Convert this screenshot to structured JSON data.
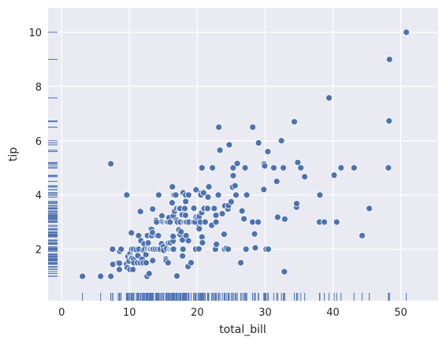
{
  "chart_data": {
    "type": "scatter",
    "title": "",
    "xlabel": "total_bill",
    "ylabel": "tip",
    "xlim": [
      -2,
      55.5
    ],
    "ylim": [
      0.1,
      10.9
    ],
    "xticks": [
      0,
      10,
      20,
      30,
      40,
      50
    ],
    "yticks": [
      2,
      4,
      6,
      8,
      10
    ],
    "grid": true,
    "rug": true,
    "colors": {
      "background": "#eaeaf2",
      "grid": "#ffffff",
      "marker": "#4c72b0",
      "marker_edge": "#ffffff"
    },
    "points": [
      [
        3.07,
        1.0
      ],
      [
        5.75,
        1.0
      ],
      [
        7.25,
        1.0
      ],
      [
        7.25,
        5.15
      ],
      [
        7.51,
        2.0
      ],
      [
        7.56,
        1.44
      ],
      [
        8.35,
        1.5
      ],
      [
        8.51,
        1.25
      ],
      [
        8.52,
        1.48
      ],
      [
        8.58,
        1.92
      ],
      [
        8.77,
        2.0
      ],
      [
        9.55,
        1.45
      ],
      [
        9.6,
        4.0
      ],
      [
        9.68,
        1.32
      ],
      [
        9.78,
        1.73
      ],
      [
        9.94,
        1.56
      ],
      [
        10.07,
        1.25
      ],
      [
        10.07,
        1.83
      ],
      [
        10.27,
        1.71
      ],
      [
        10.29,
        2.6
      ],
      [
        10.33,
        1.67
      ],
      [
        10.33,
        2.0
      ],
      [
        10.34,
        1.66
      ],
      [
        10.34,
        2.0
      ],
      [
        10.51,
        1.25
      ],
      [
        10.59,
        1.61
      ],
      [
        10.63,
        2.0
      ],
      [
        10.65,
        1.5
      ],
      [
        11.02,
        1.98
      ],
      [
        11.17,
        1.5
      ],
      [
        11.24,
        1.76
      ],
      [
        11.35,
        2.5
      ],
      [
        11.38,
        2.0
      ],
      [
        11.59,
        1.5
      ],
      [
        11.61,
        3.39
      ],
      [
        11.69,
        2.31
      ],
      [
        11.87,
        1.63
      ],
      [
        12.02,
        1.97
      ],
      [
        12.03,
        1.5
      ],
      [
        12.16,
        2.2
      ],
      [
        12.26,
        2.0
      ],
      [
        12.43,
        1.8
      ],
      [
        12.46,
        1.5
      ],
      [
        12.48,
        2.52
      ],
      [
        12.54,
        2.5
      ],
      [
        12.6,
        1.0
      ],
      [
        12.66,
        2.5
      ],
      [
        12.69,
        2.0
      ],
      [
        12.74,
        2.01
      ],
      [
        12.76,
        2.23
      ],
      [
        12.9,
        1.1
      ],
      [
        13.0,
        2.0
      ],
      [
        13.03,
        2.0
      ],
      [
        13.13,
        2.0
      ],
      [
        13.16,
        2.75
      ],
      [
        13.27,
        2.5
      ],
      [
        13.28,
        2.72
      ],
      [
        13.37,
        2.0
      ],
      [
        13.39,
        2.61
      ],
      [
        13.42,
        1.58
      ],
      [
        13.42,
        3.48
      ],
      [
        13.51,
        2.0
      ],
      [
        13.81,
        2.0
      ],
      [
        13.94,
        3.06
      ],
      [
        14.0,
        3.0
      ],
      [
        14.07,
        2.5
      ],
      [
        14.15,
        2.0
      ],
      [
        14.26,
        2.5
      ],
      [
        14.31,
        4.0
      ],
      [
        14.48,
        2.0
      ],
      [
        14.52,
        2.0
      ],
      [
        14.73,
        2.2
      ],
      [
        14.78,
        3.23
      ],
      [
        14.83,
        3.02
      ],
      [
        15.01,
        2.09
      ],
      [
        15.04,
        1.96
      ],
      [
        15.06,
        3.0
      ],
      [
        15.36,
        1.64
      ],
      [
        15.38,
        3.0
      ],
      [
        15.42,
        1.57
      ],
      [
        15.48,
        2.02
      ],
      [
        15.53,
        3.0
      ],
      [
        15.69,
        1.5
      ],
      [
        15.69,
        3.0
      ],
      [
        15.77,
        2.23
      ],
      [
        15.81,
        3.16
      ],
      [
        15.95,
        2.0
      ],
      [
        15.98,
        3.0
      ],
      [
        16.0,
        2.0
      ],
      [
        16.04,
        2.24
      ],
      [
        16.21,
        2.0
      ],
      [
        16.27,
        2.5
      ],
      [
        16.29,
        3.71
      ],
      [
        16.31,
        2.0
      ],
      [
        16.32,
        4.3
      ],
      [
        16.4,
        2.5
      ],
      [
        16.43,
        2.3
      ],
      [
        16.45,
        2.47
      ],
      [
        16.47,
        3.23
      ],
      [
        16.49,
        2.0
      ],
      [
        16.58,
        4.0
      ],
      [
        16.66,
        3.4
      ],
      [
        16.82,
        4.0
      ],
      [
        16.93,
        3.07
      ],
      [
        16.97,
        3.5
      ],
      [
        16.99,
        1.01
      ],
      [
        17.07,
        3.0
      ],
      [
        17.26,
        2.74
      ],
      [
        17.29,
        2.71
      ],
      [
        17.31,
        3.5
      ],
      [
        17.46,
        2.54
      ],
      [
        17.47,
        3.5
      ],
      [
        17.51,
        3.0
      ],
      [
        17.59,
        2.64
      ],
      [
        17.78,
        3.27
      ],
      [
        17.81,
        2.34
      ],
      [
        17.82,
        1.75
      ],
      [
        17.89,
        2.0
      ],
      [
        17.92,
        4.08
      ],
      [
        18.04,
        3.0
      ],
      [
        18.15,
        3.5
      ],
      [
        18.24,
        3.76
      ],
      [
        18.26,
        3.25
      ],
      [
        18.28,
        4.0
      ],
      [
        18.29,
        3.0
      ],
      [
        18.29,
        3.76
      ],
      [
        18.35,
        2.5
      ],
      [
        18.43,
        3.0
      ],
      [
        18.64,
        1.36
      ],
      [
        18.69,
        2.31
      ],
      [
        18.71,
        4.0
      ],
      [
        18.78,
        3.0
      ],
      [
        19.08,
        1.5
      ],
      [
        19.44,
        3.0
      ],
      [
        19.49,
        3.51
      ],
      [
        19.65,
        3.0
      ],
      [
        19.77,
        2.0
      ],
      [
        19.81,
        4.19
      ],
      [
        19.82,
        3.18
      ],
      [
        20.08,
        3.15
      ],
      [
        20.23,
        2.01
      ],
      [
        20.27,
        2.83
      ],
      [
        20.29,
        2.75
      ],
      [
        20.29,
        3.21
      ],
      [
        20.45,
        3.0
      ],
      [
        20.49,
        4.06
      ],
      [
        20.53,
        4.0
      ],
      [
        20.65,
        3.35
      ],
      [
        20.69,
        2.45
      ],
      [
        20.69,
        5.0
      ],
      [
        20.76,
        2.24
      ],
      [
        20.9,
        3.5
      ],
      [
        20.92,
        4.08
      ],
      [
        21.01,
        3.5
      ],
      [
        21.16,
        3.0
      ],
      [
        21.5,
        3.5
      ],
      [
        21.58,
        3.92
      ],
      [
        21.7,
        4.3
      ],
      [
        22.12,
        2.88
      ],
      [
        22.23,
        5.0
      ],
      [
        22.42,
        3.48
      ],
      [
        22.49,
        3.5
      ],
      [
        22.67,
        2.0
      ],
      [
        22.75,
        3.25
      ],
      [
        22.76,
        3.0
      ],
      [
        22.82,
        2.18
      ],
      [
        23.1,
        4.0
      ],
      [
        23.17,
        6.5
      ],
      [
        23.33,
        5.65
      ],
      [
        23.68,
        3.31
      ],
      [
        23.95,
        2.55
      ],
      [
        24.01,
        2.0
      ],
      [
        24.06,
        3.6
      ],
      [
        24.27,
        2.03
      ],
      [
        24.52,
        3.48
      ],
      [
        24.55,
        2.0
      ],
      [
        24.59,
        3.61
      ],
      [
        24.71,
        5.85
      ],
      [
        25.0,
        3.75
      ],
      [
        25.21,
        4.29
      ],
      [
        25.28,
        5.0
      ],
      [
        25.29,
        4.71
      ],
      [
        25.56,
        4.34
      ],
      [
        25.71,
        4.0
      ],
      [
        25.89,
        5.16
      ],
      [
        26.41,
        1.5
      ],
      [
        26.59,
        3.41
      ],
      [
        26.86,
        3.14
      ],
      [
        26.88,
        3.12
      ],
      [
        27.05,
        5.0
      ],
      [
        27.18,
        2.0
      ],
      [
        27.2,
        4.0
      ],
      [
        27.28,
        4.0
      ],
      [
        28.15,
        3.0
      ],
      [
        28.17,
        6.5
      ],
      [
        28.44,
        2.56
      ],
      [
        28.55,
        2.05
      ],
      [
        28.97,
        3.0
      ],
      [
        29.03,
        5.92
      ],
      [
        29.8,
        4.2
      ],
      [
        29.85,
        5.14
      ],
      [
        29.93,
        5.07
      ],
      [
        30.06,
        2.0
      ],
      [
        30.14,
        2.0
      ],
      [
        30.4,
        5.6
      ],
      [
        30.46,
        2.0
      ],
      [
        31.27,
        5.0
      ],
      [
        31.71,
        4.5
      ],
      [
        31.85,
        3.18
      ],
      [
        32.4,
        6.0
      ],
      [
        32.68,
        5.0
      ],
      [
        32.83,
        1.17
      ],
      [
        32.9,
        3.11
      ],
      [
        34.3,
        6.7
      ],
      [
        34.63,
        3.55
      ],
      [
        34.65,
        3.68
      ],
      [
        34.81,
        5.2
      ],
      [
        35.26,
        5.0
      ],
      [
        35.83,
        4.67
      ],
      [
        38.01,
        3.0
      ],
      [
        38.07,
        4.0
      ],
      [
        38.73,
        3.0
      ],
      [
        39.42,
        7.58
      ],
      [
        40.17,
        4.73
      ],
      [
        40.55,
        3.0
      ],
      [
        41.19,
        5.0
      ],
      [
        43.11,
        5.0
      ],
      [
        44.3,
        2.5
      ],
      [
        45.35,
        3.5
      ],
      [
        48.17,
        5.0
      ],
      [
        48.27,
        6.73
      ],
      [
        48.33,
        9.0
      ],
      [
        50.81,
        10.0
      ]
    ]
  }
}
